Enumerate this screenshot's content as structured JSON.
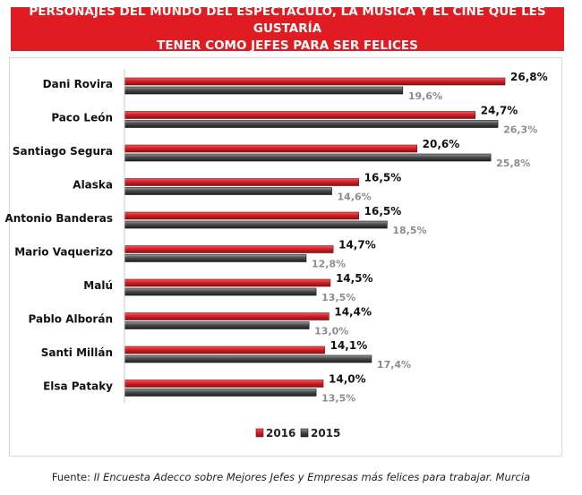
{
  "header": {
    "title_line1": "PERSONAJES DEL MUNDO DEL ESPECTÁCULO, LA MÚSICA Y EL CINE QUE LES GUSTARÍA",
    "title_line2": "TENER COMO JEFES PARA SER FELICES"
  },
  "footer": {
    "source_label": "Fuente:",
    "source_text": "II Encuesta Adecco sobre Mejores Jefes y Empresas más felices para trabajar. Murcia"
  },
  "colors": {
    "series_2016": "#d31f26",
    "series_2015": "#4b4b4b",
    "title_bg": "#e11b22"
  },
  "chart_data": {
    "type": "bar",
    "orientation": "horizontal",
    "categories": [
      "Dani Rovira",
      "Paco León",
      "Santiago Segura",
      "Alaska",
      "Antonio Banderas",
      "Mario Vaquerizo",
      "Malú",
      "Pablo Alborán",
      "Santi Millán",
      "Elsa Pataky"
    ],
    "series": [
      {
        "name": "2016",
        "values": [
          26.8,
          24.7,
          20.6,
          16.5,
          16.5,
          14.7,
          14.5,
          14.4,
          14.1,
          14.0
        ],
        "labels": [
          "26,8%",
          "24,7%",
          "20,6%",
          "16,5%",
          "16,5%",
          "14,7%",
          "14,5%",
          "14,4%",
          "14,1%",
          "14,0%"
        ]
      },
      {
        "name": "2015",
        "values": [
          19.6,
          26.3,
          25.8,
          14.6,
          18.5,
          12.8,
          13.5,
          13.0,
          17.4,
          13.5
        ],
        "labels": [
          "19,6%",
          "26,3%",
          "25,8%",
          "14,6%",
          "18,5%",
          "12,8%",
          "13,5%",
          "13,0%",
          "17,4%",
          "13,5%"
        ]
      }
    ],
    "xlim": [
      0,
      30
    ],
    "grid": false,
    "legend": "bottom-center"
  }
}
